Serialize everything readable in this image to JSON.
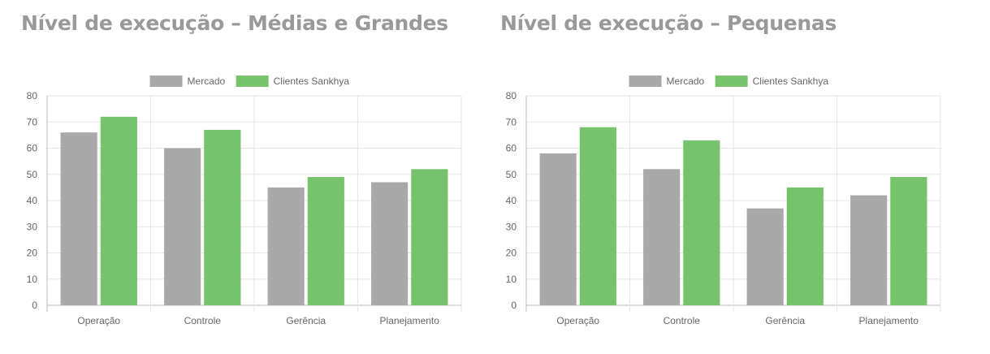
{
  "chart_data": [
    {
      "type": "bar",
      "title": "Nível de execução – Médias e Grandes",
      "categories": [
        "Operação",
        "Controle",
        "Gerência",
        "Planejamento"
      ],
      "series": [
        {
          "name": "Mercado",
          "color": "#a9a9a9",
          "values": [
            66,
            60,
            45,
            47
          ]
        },
        {
          "name": "Clientes Sankhya",
          "color": "#77c26c",
          "values": [
            72,
            67,
            49,
            52
          ]
        }
      ],
      "ylim": [
        0,
        80
      ],
      "yticks": [
        0,
        10,
        20,
        30,
        40,
        50,
        60,
        70,
        80
      ],
      "xlabel": "",
      "ylabel": "",
      "grid": true,
      "legend": "top-center"
    },
    {
      "type": "bar",
      "title": "Nível de execução – Pequenas",
      "categories": [
        "Operação",
        "Controle",
        "Gerência",
        "Planejamento"
      ],
      "series": [
        {
          "name": "Mercado",
          "color": "#a9a9a9",
          "values": [
            58,
            52,
            37,
            42
          ]
        },
        {
          "name": "Clientes Sankhya",
          "color": "#77c26c",
          "values": [
            68,
            63,
            45,
            49
          ]
        }
      ],
      "ylim": [
        0,
        80
      ],
      "yticks": [
        0,
        10,
        20,
        30,
        40,
        50,
        60,
        70,
        80
      ],
      "xlabel": "",
      "ylabel": "",
      "grid": true,
      "legend": "top-center"
    }
  ]
}
